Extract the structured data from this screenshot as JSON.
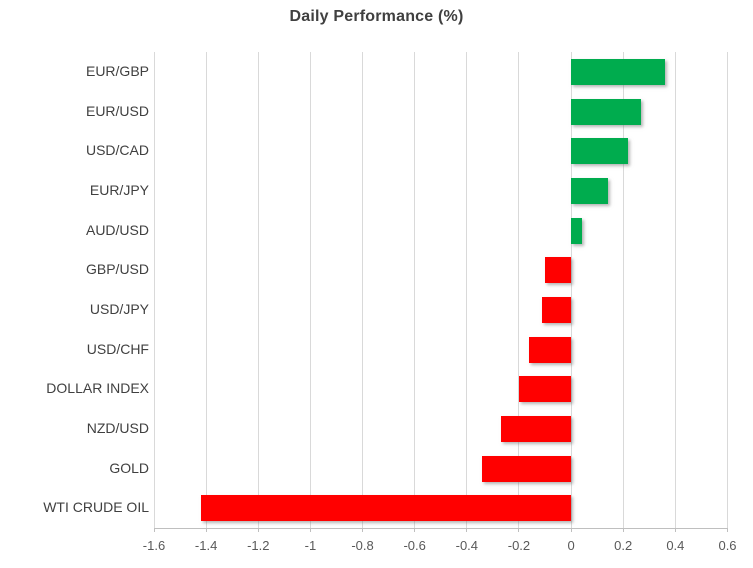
{
  "chart_data": {
    "type": "bar",
    "orientation": "horizontal",
    "title": "Daily Performance (%)",
    "categories": [
      "EUR/GBP",
      "EUR/USD",
      "USD/CAD",
      "EUR/JPY",
      "AUD/USD",
      "GBP/USD",
      "USD/JPY",
      "USD/CHF",
      "DOLLAR INDEX",
      "NZD/USD",
      "GOLD",
      "WTI CRUDE OIL"
    ],
    "values": [
      0.36,
      0.27,
      0.22,
      0.14,
      0.04,
      -0.1,
      -0.11,
      -0.16,
      -0.2,
      -0.27,
      -0.34,
      -1.42
    ],
    "xlabel": "",
    "ylabel": "",
    "xlim": [
      -1.6,
      0.6
    ],
    "x_tick_values": [
      -1.6,
      -1.4,
      -1.2,
      -1,
      -0.8,
      -0.6,
      -0.4,
      -0.2,
      0,
      0.2,
      0.4,
      0.6
    ],
    "x_tick_labels": [
      "-1.6",
      "-1.4",
      "-1.2",
      "-1",
      "-0.8",
      "-0.6",
      "-0.4",
      "-0.2",
      "0",
      "0.2",
      "0.4",
      "0.6"
    ],
    "grid": "vertical",
    "legend": "none",
    "colors": {
      "positive_bar": "#00AC4E",
      "negative_bar": "#FF0000",
      "gridline": "#D9D9D9",
      "axis_line": "#BFBFBF",
      "title_text": "#404040",
      "category_text": "#404040",
      "tick_text": "#595959"
    }
  }
}
